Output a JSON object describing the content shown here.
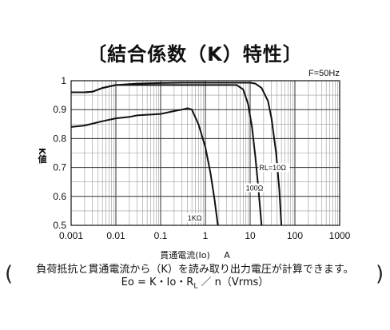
{
  "title": "〔結合係数（K）特性〕",
  "frequency_label": "F=50Hz",
  "note": {
    "line1": "負荷抵抗と貫通電流から（K）を読み取り出力電圧が計算できます。",
    "line2": "Eo = K・Io・R",
    "line2_sub": "L",
    "line2_end": " ／ n（Vrms）"
  },
  "chart_data": {
    "type": "line",
    "title": "〔結合係数（K）特性〕",
    "xlabel": "貫通電流(Io)",
    "xunit": "A",
    "ylabel": "K値",
    "xscale": "log",
    "xlim": [
      0.001,
      1000
    ],
    "ylim": [
      0.5,
      1.0
    ],
    "grid": true,
    "x_ticks": [
      "0.001",
      "0.01",
      "0.1",
      "1",
      "10",
      "100",
      "1000"
    ],
    "y_ticks": [
      "0.5",
      "0.6",
      "0.7",
      "0.8",
      "0.9",
      "1"
    ],
    "series": [
      {
        "name": "RL=10Ω",
        "x": [
          0.001,
          0.002,
          0.003,
          0.005,
          0.01,
          0.03,
          0.1,
          0.3,
          1,
          3,
          10,
          13,
          18,
          25,
          30,
          38,
          45,
          50
        ],
        "y": [
          0.96,
          0.96,
          0.962,
          0.975,
          0.985,
          0.99,
          0.992,
          0.993,
          0.993,
          0.993,
          0.993,
          0.99,
          0.975,
          0.93,
          0.87,
          0.75,
          0.62,
          0.5
        ]
      },
      {
        "name": "100Ω",
        "x": [
          0.001,
          0.002,
          0.003,
          0.005,
          0.01,
          0.03,
          0.1,
          0.3,
          1,
          3,
          5,
          7,
          9,
          11,
          13,
          15,
          18
        ],
        "y": [
          0.96,
          0.96,
          0.962,
          0.975,
          0.985,
          0.985,
          0.985,
          0.985,
          0.985,
          0.985,
          0.985,
          0.97,
          0.92,
          0.84,
          0.74,
          0.64,
          0.5
        ]
      },
      {
        "name": "1KΩ",
        "x": [
          0.001,
          0.002,
          0.005,
          0.01,
          0.02,
          0.03,
          0.1,
          0.2,
          0.3,
          0.4,
          0.5,
          0.7,
          1,
          1.3,
          1.6,
          1.9
        ],
        "y": [
          0.84,
          0.845,
          0.86,
          0.87,
          0.875,
          0.88,
          0.885,
          0.895,
          0.9,
          0.905,
          0.9,
          0.85,
          0.77,
          0.68,
          0.59,
          0.5
        ]
      }
    ]
  }
}
